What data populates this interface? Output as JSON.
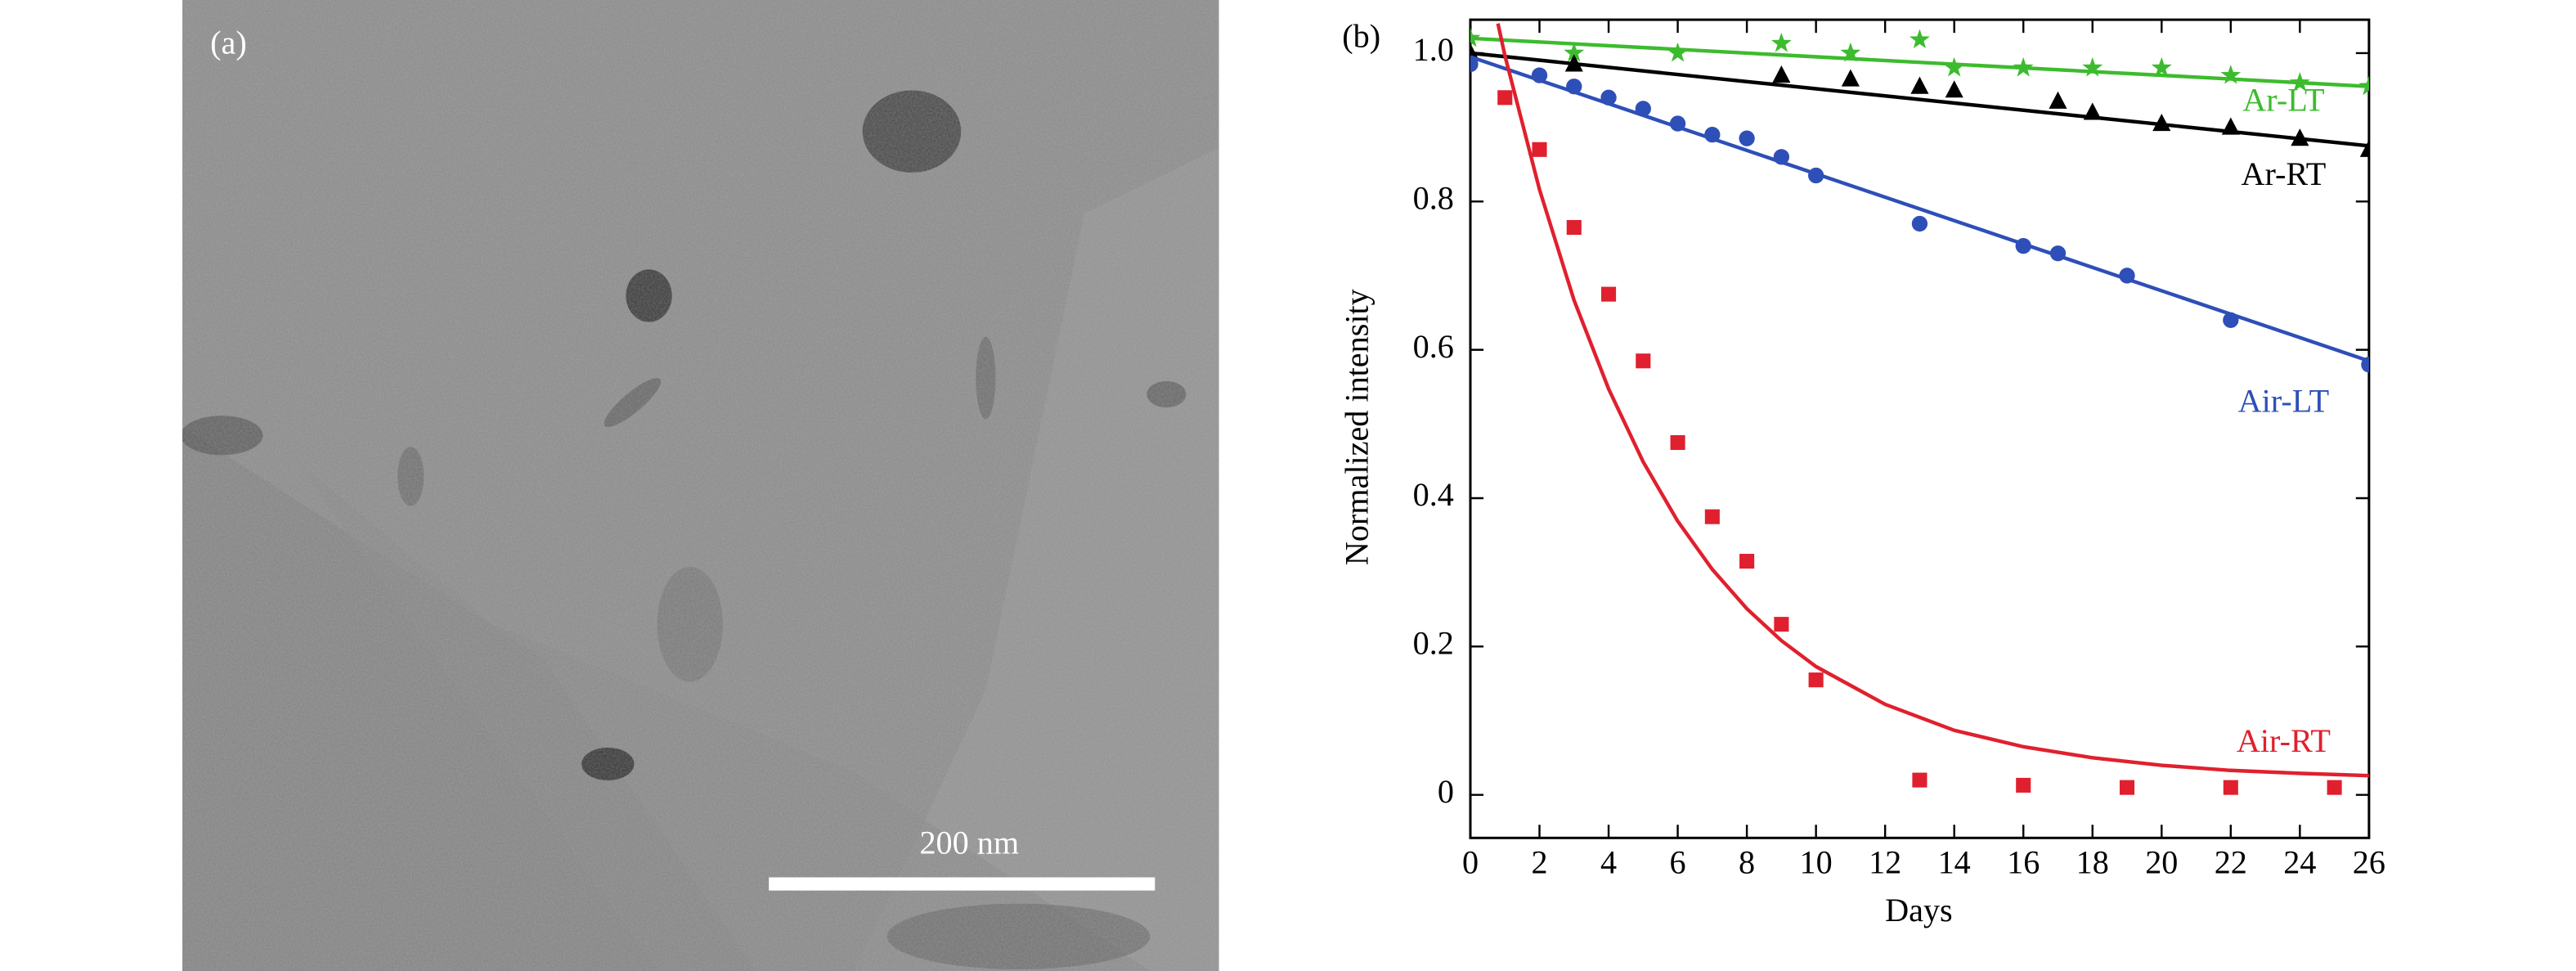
{
  "panel_a": {
    "label": "(a)",
    "scale_bar": "200 nm"
  },
  "chart_data": {
    "type": "scatter",
    "panel_label": "(b)",
    "x_label": "Days",
    "y_label": "Normalized intensity",
    "xlim": [
      0,
      26
    ],
    "ylim": [
      -0.058,
      1.045
    ],
    "xticks": [
      0,
      2,
      4,
      6,
      8,
      10,
      12,
      14,
      16,
      18,
      20,
      22,
      24,
      26
    ],
    "yticks": [
      0,
      0.2,
      0.4,
      0.6,
      0.8,
      {
        "value": 1.0,
        "label": "1.0"
      }
    ],
    "series": [
      {
        "name": "Ar-LT",
        "color": "#3dbb2e",
        "marker": "star",
        "x": [
          0,
          3,
          6,
          9,
          11,
          13,
          14,
          16,
          18,
          20,
          22,
          24,
          26
        ],
        "values": [
          1.02,
          1.0,
          1.0,
          1.013,
          1.0,
          1.018,
          0.98,
          0.98,
          0.98,
          0.98,
          0.97,
          0.96,
          0.955
        ],
        "fit": {
          "x": [
            0,
            26
          ],
          "values": [
            1.02,
            0.955
          ]
        }
      },
      {
        "name": "Ar-RT",
        "color": "#000000",
        "marker": "triangle",
        "x": [
          0,
          3,
          9,
          11,
          13,
          14,
          17,
          18,
          20,
          22,
          24,
          26
        ],
        "values": [
          1.0,
          0.985,
          0.97,
          0.965,
          0.955,
          0.95,
          0.935,
          0.92,
          0.905,
          0.9,
          0.885,
          0.87
        ],
        "fit": {
          "x": [
            0,
            26
          ],
          "values": [
            1.0,
            0.875
          ]
        }
      },
      {
        "name": "Air-LT",
        "color": "#2e4fb8",
        "marker": "circle",
        "x": [
          0,
          2,
          3,
          4,
          5,
          6,
          7,
          8,
          9,
          10,
          13,
          16,
          17,
          19,
          22,
          26
        ],
        "values": [
          0.985,
          0.97,
          0.955,
          0.94,
          0.925,
          0.905,
          0.89,
          0.885,
          0.86,
          0.835,
          0.77,
          0.74,
          0.73,
          0.7,
          0.64,
          0.58
        ],
        "fit": {
          "x": [
            0,
            26
          ],
          "values": [
            0.995,
            0.585
          ]
        }
      },
      {
        "name": "Air-RT",
        "color": "#e0202e",
        "marker": "square",
        "x": [
          1,
          2,
          3,
          4,
          5,
          6,
          7,
          8,
          9,
          10,
          13,
          16,
          19,
          22,
          25
        ],
        "values": [
          0.94,
          0.87,
          0.765,
          0.675,
          0.585,
          0.475,
          0.375,
          0.315,
          0.23,
          0.155,
          0.02,
          0.013,
          0.01,
          0.01,
          0.01
        ],
        "fit": {
          "x": [
            0.8,
            1,
            2,
            3,
            4,
            5,
            6,
            7,
            8,
            9,
            10,
            12,
            14,
            16,
            18,
            20,
            22,
            24,
            26
          ],
          "values": [
            1.04,
            0.997,
            0.816,
            0.667,
            0.547,
            0.449,
            0.369,
            0.304,
            0.251,
            0.208,
            0.173,
            0.122,
            0.087,
            0.065,
            0.05,
            0.04,
            0.033,
            0.029,
            0.026
          ]
        }
      }
    ]
  }
}
